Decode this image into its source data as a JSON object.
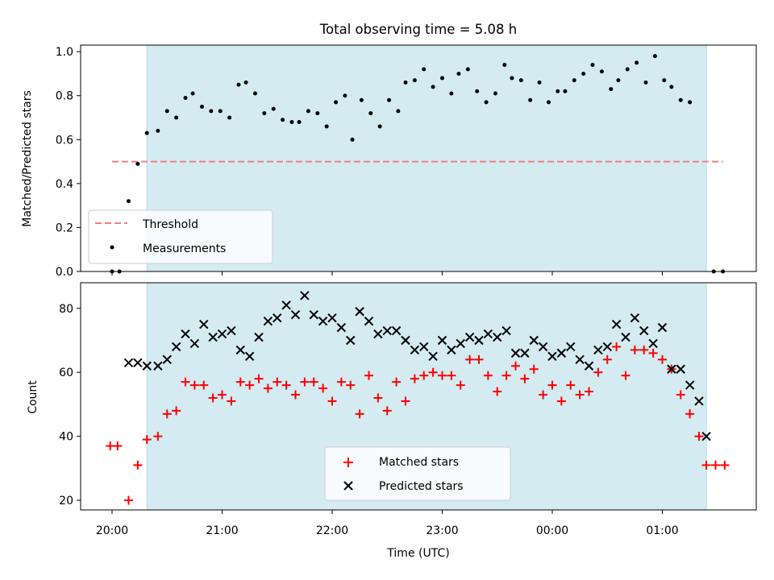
{
  "chart_data": [
    {
      "type": "scatter",
      "title": "Total observing time = 5.08 h",
      "xlabel": "",
      "ylabel": "Matched/Predicted stars",
      "ylim": [
        0.0,
        1.03
      ],
      "yticks": [
        "0.0",
        "0.2",
        "0.4",
        "0.6",
        "0.8",
        "1.0"
      ],
      "observing_window": {
        "start": "20:19",
        "end": "01:24"
      },
      "threshold": {
        "name": "Threshold",
        "value": 0.5,
        "x_start": "20:00",
        "x_end": "01:33",
        "color": "#f08080"
      },
      "legend": {
        "position": "lower-left",
        "entries": [
          "Threshold",
          "Measurements"
        ]
      },
      "series": [
        {
          "name": "Measurements",
          "marker": "dot",
          "color": "#000000",
          "points": [
            [
              "20:00",
              0.0
            ],
            [
              "20:04",
              0.0
            ],
            [
              "20:09",
              0.32
            ],
            [
              "20:14",
              0.49
            ],
            [
              "20:19",
              0.63
            ],
            [
              "20:25",
              0.64
            ],
            [
              "20:30",
              0.73
            ],
            [
              "20:35",
              0.7
            ],
            [
              "20:40",
              0.79
            ],
            [
              "20:44",
              0.81
            ],
            [
              "20:49",
              0.75
            ],
            [
              "20:54",
              0.73
            ],
            [
              "20:59",
              0.73
            ],
            [
              "21:04",
              0.7
            ],
            [
              "21:09",
              0.85
            ],
            [
              "21:13",
              0.86
            ],
            [
              "21:18",
              0.81
            ],
            [
              "21:23",
              0.72
            ],
            [
              "21:28",
              0.74
            ],
            [
              "21:33",
              0.69
            ],
            [
              "21:38",
              0.68
            ],
            [
              "21:42",
              0.68
            ],
            [
              "21:47",
              0.73
            ],
            [
              "21:52",
              0.72
            ],
            [
              "21:57",
              0.66
            ],
            [
              "22:02",
              0.77
            ],
            [
              "22:07",
              0.8
            ],
            [
              "22:11",
              0.6
            ],
            [
              "22:16",
              0.78
            ],
            [
              "22:21",
              0.72
            ],
            [
              "22:26",
              0.66
            ],
            [
              "22:31",
              0.78
            ],
            [
              "22:36",
              0.73
            ],
            [
              "22:40",
              0.86
            ],
            [
              "22:45",
              0.87
            ],
            [
              "22:50",
              0.92
            ],
            [
              "22:55",
              0.84
            ],
            [
              "23:00",
              0.88
            ],
            [
              "23:05",
              0.81
            ],
            [
              "23:09",
              0.9
            ],
            [
              "23:14",
              0.92
            ],
            [
              "23:19",
              0.82
            ],
            [
              "23:24",
              0.77
            ],
            [
              "23:29",
              0.81
            ],
            [
              "23:34",
              0.94
            ],
            [
              "23:38",
              0.88
            ],
            [
              "23:43",
              0.87
            ],
            [
              "23:48",
              0.78
            ],
            [
              "23:53",
              0.86
            ],
            [
              "23:58",
              0.77
            ],
            [
              "00:03",
              0.82
            ],
            [
              "00:07",
              0.82
            ],
            [
              "00:12",
              0.87
            ],
            [
              "00:17",
              0.9
            ],
            [
              "00:22",
              0.94
            ],
            [
              "00:27",
              0.91
            ],
            [
              "00:32",
              0.83
            ],
            [
              "00:36",
              0.87
            ],
            [
              "00:41",
              0.92
            ],
            [
              "00:46",
              0.95
            ],
            [
              "00:51",
              0.86
            ],
            [
              "00:56",
              0.98
            ],
            [
              "01:01",
              0.87
            ],
            [
              "01:05",
              0.84
            ],
            [
              "01:10",
              0.78
            ],
            [
              "01:15",
              0.77
            ],
            [
              "01:28",
              0.0
            ],
            [
              "01:33",
              0.0
            ]
          ]
        }
      ]
    },
    {
      "type": "scatter",
      "title": "",
      "xlabel": "Time (UTC)",
      "ylabel": "Count",
      "ylim": [
        17,
        88
      ],
      "yticks": [
        "20",
        "40",
        "60",
        "80"
      ],
      "xticks": [
        "20:00",
        "21:00",
        "22:00",
        "23:00",
        "00:00",
        "01:00"
      ],
      "observing_window": {
        "start": "20:19",
        "end": "01:24"
      },
      "legend": {
        "position": "lower-center",
        "entries": [
          "Matched stars",
          "Predicted stars"
        ]
      },
      "series": [
        {
          "name": "Matched stars",
          "marker": "plus",
          "color": "#ff0000",
          "points": [
            [
              "19:59",
              37
            ],
            [
              "20:03",
              37
            ],
            [
              "20:09",
              20
            ],
            [
              "20:14",
              31
            ],
            [
              "20:19",
              39
            ],
            [
              "20:25",
              40
            ],
            [
              "20:30",
              47
            ],
            [
              "20:35",
              48
            ],
            [
              "20:40",
              57
            ],
            [
              "20:45",
              56
            ],
            [
              "20:50",
              56
            ],
            [
              "20:55",
              52
            ],
            [
              "21:00",
              53
            ],
            [
              "21:05",
              51
            ],
            [
              "21:10",
              57
            ],
            [
              "21:15",
              56
            ],
            [
              "21:20",
              58
            ],
            [
              "21:25",
              55
            ],
            [
              "21:30",
              57
            ],
            [
              "21:35",
              56
            ],
            [
              "21:40",
              53
            ],
            [
              "21:45",
              57
            ],
            [
              "21:50",
              57
            ],
            [
              "21:55",
              55
            ],
            [
              "22:00",
              51
            ],
            [
              "22:05",
              57
            ],
            [
              "22:10",
              56
            ],
            [
              "22:15",
              47
            ],
            [
              "22:20",
              59
            ],
            [
              "22:25",
              52
            ],
            [
              "22:30",
              48
            ],
            [
              "22:35",
              57
            ],
            [
              "22:40",
              51
            ],
            [
              "22:45",
              58
            ],
            [
              "22:50",
              59
            ],
            [
              "22:55",
              60
            ],
            [
              "23:00",
              59
            ],
            [
              "23:05",
              59
            ],
            [
              "23:10",
              56
            ],
            [
              "23:15",
              64
            ],
            [
              "23:20",
              64
            ],
            [
              "23:25",
              59
            ],
            [
              "23:30",
              54
            ],
            [
              "23:35",
              59
            ],
            [
              "23:40",
              62
            ],
            [
              "23:45",
              58
            ],
            [
              "23:50",
              61
            ],
            [
              "23:55",
              53
            ],
            [
              "00:00",
              56
            ],
            [
              "00:05",
              51
            ],
            [
              "00:10",
              56
            ],
            [
              "00:15",
              53
            ],
            [
              "00:20",
              54
            ],
            [
              "00:25",
              60
            ],
            [
              "00:30",
              64
            ],
            [
              "00:35",
              68
            ],
            [
              "00:40",
              59
            ],
            [
              "00:45",
              67
            ],
            [
              "00:50",
              67
            ],
            [
              "00:55",
              66
            ],
            [
              "01:00",
              64
            ],
            [
              "01:05",
              61
            ],
            [
              "01:10",
              53
            ],
            [
              "01:15",
              47
            ],
            [
              "01:20",
              40
            ],
            [
              "01:24",
              31
            ],
            [
              "01:29",
              31
            ],
            [
              "01:34",
              31
            ]
          ]
        },
        {
          "name": "Predicted stars",
          "marker": "x",
          "color": "#000000",
          "points": [
            [
              "20:09",
              63
            ],
            [
              "20:14",
              63
            ],
            [
              "20:19",
              62
            ],
            [
              "20:25",
              62
            ],
            [
              "20:30",
              64
            ],
            [
              "20:35",
              68
            ],
            [
              "20:40",
              72
            ],
            [
              "20:45",
              69
            ],
            [
              "20:50",
              75
            ],
            [
              "20:55",
              71
            ],
            [
              "21:00",
              72
            ],
            [
              "21:05",
              73
            ],
            [
              "21:10",
              67
            ],
            [
              "21:15",
              65
            ],
            [
              "21:20",
              71
            ],
            [
              "21:25",
              76
            ],
            [
              "21:30",
              77
            ],
            [
              "21:35",
              81
            ],
            [
              "21:40",
              78
            ],
            [
              "21:45",
              84
            ],
            [
              "21:50",
              78
            ],
            [
              "21:55",
              76
            ],
            [
              "22:00",
              77
            ],
            [
              "22:05",
              74
            ],
            [
              "22:10",
              70
            ],
            [
              "22:15",
              79
            ],
            [
              "22:20",
              76
            ],
            [
              "22:25",
              72
            ],
            [
              "22:30",
              73
            ],
            [
              "22:35",
              73
            ],
            [
              "22:40",
              70
            ],
            [
              "22:45",
              67
            ],
            [
              "22:50",
              68
            ],
            [
              "22:55",
              65
            ],
            [
              "23:00",
              70
            ],
            [
              "23:05",
              67
            ],
            [
              "23:10",
              69
            ],
            [
              "23:15",
              71
            ],
            [
              "23:20",
              70
            ],
            [
              "23:25",
              72
            ],
            [
              "23:30",
              71
            ],
            [
              "23:35",
              73
            ],
            [
              "23:40",
              66
            ],
            [
              "23:45",
              66
            ],
            [
              "23:50",
              70
            ],
            [
              "23:55",
              68
            ],
            [
              "00:00",
              65
            ],
            [
              "00:05",
              66
            ],
            [
              "00:10",
              68
            ],
            [
              "00:15",
              64
            ],
            [
              "00:20",
              62
            ],
            [
              "00:25",
              67
            ],
            [
              "00:30",
              68
            ],
            [
              "00:35",
              75
            ],
            [
              "00:40",
              71
            ],
            [
              "00:45",
              77
            ],
            [
              "00:50",
              73
            ],
            [
              "00:55",
              69
            ],
            [
              "01:00",
              74
            ],
            [
              "01:05",
              61
            ],
            [
              "01:10",
              61
            ],
            [
              "01:15",
              56
            ],
            [
              "01:20",
              51
            ],
            [
              "01:24",
              40
            ]
          ]
        }
      ]
    }
  ],
  "colors": {
    "window_fill": "#d4ebf2",
    "window_edge": "#b0dce6"
  }
}
